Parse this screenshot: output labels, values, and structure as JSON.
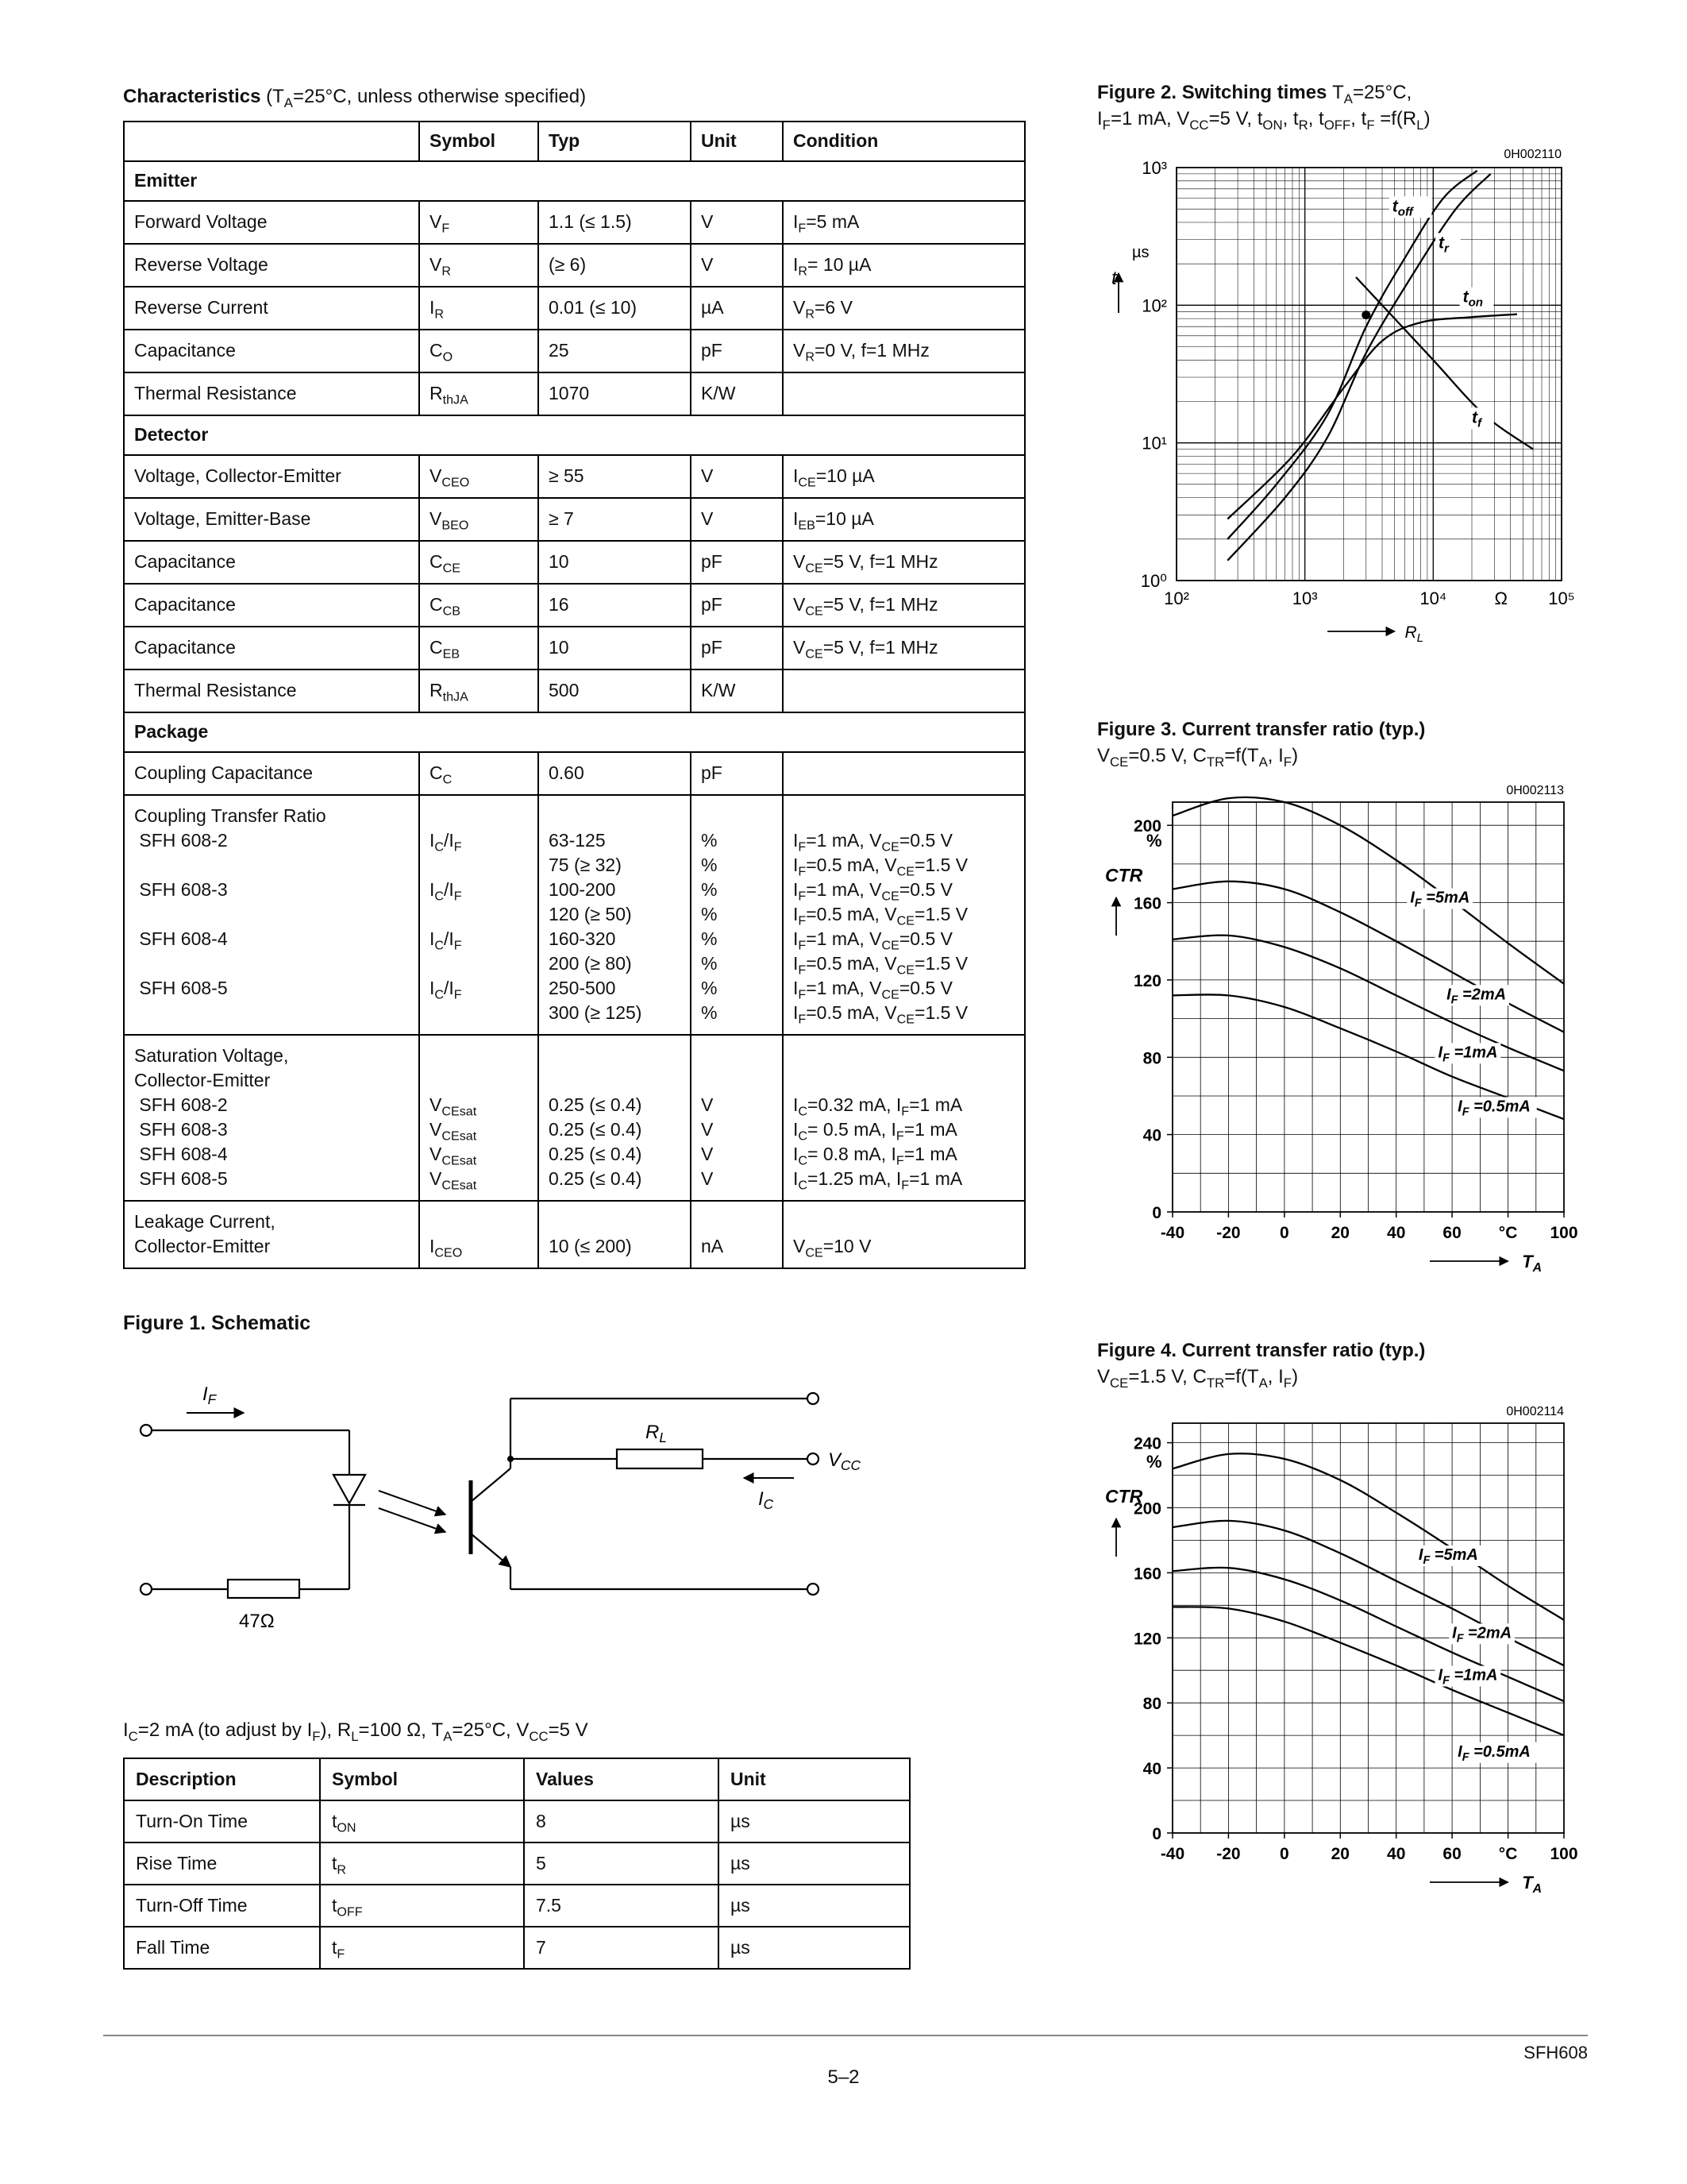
{
  "page": {
    "footer_doc": "SFH608",
    "footer_page": "5–2"
  },
  "characteristics": {
    "heading": "Characteristics",
    "heading_note": " (T~A~=25°C, unless otherwise specified)",
    "columns": [
      "",
      "Symbol",
      "Typ",
      "Unit",
      "Condition"
    ],
    "rows": [
      {
        "section": "Emitter"
      },
      {
        "desc": [
          "Forward Voltage"
        ],
        "sym": [
          "V~F~"
        ],
        "typ": [
          "1.1 (≤ 1.5)"
        ],
        "unit": [
          "V"
        ],
        "cond": [
          "I~F~=5 mA"
        ]
      },
      {
        "desc": [
          "Reverse Voltage"
        ],
        "sym": [
          "V~R~"
        ],
        "typ": [
          "(≥ 6)"
        ],
        "unit": [
          "V"
        ],
        "cond": [
          "I~R~= 10 µA"
        ]
      },
      {
        "desc": [
          "Reverse Current"
        ],
        "sym": [
          "I~R~"
        ],
        "typ": [
          "0.01 (≤ 10)"
        ],
        "unit": [
          "µA"
        ],
        "cond": [
          "V~R~=6 V"
        ]
      },
      {
        "desc": [
          "Capacitance"
        ],
        "sym": [
          "C~O~"
        ],
        "typ": [
          "25"
        ],
        "unit": [
          "pF"
        ],
        "cond": [
          "V~R~=0 V,  f=1 MHz"
        ]
      },
      {
        "desc": [
          "Thermal Resistance"
        ],
        "sym": [
          "R~thJA~"
        ],
        "typ": [
          "1070"
        ],
        "unit": [
          "K/W"
        ],
        "cond": [
          ""
        ]
      },
      {
        "section": "Detector"
      },
      {
        "desc": [
          "Voltage, Collector-Emitter"
        ],
        "sym": [
          "V~CEO~"
        ],
        "typ": [
          "≥ 55"
        ],
        "unit": [
          "V"
        ],
        "cond": [
          "I~CE~=10 µA"
        ]
      },
      {
        "desc": [
          "Voltage, Emitter-Base"
        ],
        "sym": [
          "V~BEO~"
        ],
        "typ": [
          "≥ 7"
        ],
        "unit": [
          "V"
        ],
        "cond": [
          "I~EB~=10 µA"
        ]
      },
      {
        "desc": [
          "Capacitance"
        ],
        "sym": [
          "C~CE~"
        ],
        "typ": [
          "10"
        ],
        "unit": [
          "pF"
        ],
        "cond": [
          "V~CE~=5 V, f=1 MHz"
        ]
      },
      {
        "desc": [
          "Capacitance"
        ],
        "sym": [
          "C~CB~"
        ],
        "typ": [
          "16"
        ],
        "unit": [
          "pF"
        ],
        "cond": [
          "V~CE~=5 V, f=1 MHz"
        ]
      },
      {
        "desc": [
          "Capacitance"
        ],
        "sym": [
          "C~EB~"
        ],
        "typ": [
          "10"
        ],
        "unit": [
          "pF"
        ],
        "cond": [
          "V~CE~=5 V, f=1 MHz"
        ]
      },
      {
        "desc": [
          "Thermal Resistance"
        ],
        "sym": [
          "R~thJA~"
        ],
        "typ": [
          "500"
        ],
        "unit": [
          "K/W"
        ],
        "cond": [
          ""
        ]
      },
      {
        "section": "Package"
      },
      {
        "desc": [
          "Coupling Capacitance"
        ],
        "sym": [
          "C~C~"
        ],
        "typ": [
          "0.60"
        ],
        "unit": [
          "pF"
        ],
        "cond": [
          ""
        ]
      },
      {
        "desc": [
          "Coupling Transfer Ratio",
          " SFH 608-2",
          "",
          " SFH 608-3",
          "",
          " SFH 608-4",
          "",
          " SFH 608-5",
          ""
        ],
        "sym": [
          "",
          "I~C~/I~F~",
          "",
          "I~C~/I~F~",
          "",
          "I~C~/I~F~",
          "",
          "I~C~/I~F~",
          ""
        ],
        "typ": [
          "",
          "63-125",
          "75 (≥ 32)",
          "100-200",
          "120 (≥ 50)",
          "160-320",
          "200 (≥ 80)",
          "250-500",
          "300 (≥ 125)"
        ],
        "unit": [
          "",
          "%",
          "%",
          "%",
          "%",
          "%",
          "%",
          "%",
          "%"
        ],
        "cond": [
          "",
          "I~F~=1 mA, V~CE~=0.5 V",
          "I~F~=0.5 mA, V~CE~=1.5 V",
          "I~F~=1 mA, V~CE~=0.5 V",
          "I~F~=0.5 mA, V~CE~=1.5 V",
          "I~F~=1 mA, V~CE~=0.5 V",
          "I~F~=0.5 mA, V~CE~=1.5 V",
          "I~F~=1 mA, V~CE~=0.5 V",
          "I~F~=0.5 mA, V~CE~=1.5 V"
        ]
      },
      {
        "desc": [
          "Saturation Voltage,",
          "Collector-Emitter",
          " SFH 608-2",
          " SFH 608-3",
          " SFH 608-4",
          " SFH 608-5"
        ],
        "sym": [
          "",
          "",
          "V~CEsat~",
          "V~CEsat~",
          "V~CEsat~",
          "V~CEsat~"
        ],
        "typ": [
          "",
          "",
          "0.25 (≤ 0.4)",
          "0.25 (≤ 0.4)",
          "0.25 (≤ 0.4)",
          "0.25 (≤ 0.4)"
        ],
        "unit": [
          "",
          "",
          "V",
          "V",
          "V",
          "V"
        ],
        "cond": [
          "",
          "",
          "I~C~=0.32 mA, I~F~=1 mA",
          "I~C~= 0.5 mA, I~F~=1 mA",
          "I~C~= 0.8 mA, I~F~=1 mA",
          "I~C~=1.25 mA, I~F~=1 mA"
        ]
      },
      {
        "desc": [
          "Leakage Current,",
          "Collector-Emitter"
        ],
        "sym": [
          "",
          "I~CEO~"
        ],
        "typ": [
          "",
          "10 (≤ 200)"
        ],
        "unit": [
          "",
          "nA"
        ],
        "cond": [
          "",
          "V~CE~=10 V"
        ]
      }
    ]
  },
  "figures": {
    "fig1": {
      "title": "Figure 1. Schematic"
    },
    "fig2": {
      "title_bold": "Figure 2.  Switching times ",
      "title_rest": "T~A~=25°C,",
      "subtitle": "I~F~=1 mA, V~CC~=5 V, t~ON~, t~R~, t~OFF~, t~F~ =f(R~L~)"
    },
    "fig3": {
      "title_bold": "Figure 3.  Current transfer ratio (typ.)",
      "subtitle": "V~CE~=0.5 V, C~TR~=f(T~A~, I~F~)"
    },
    "fig4": {
      "title_bold": "Figure 4.  Current transfer ratio (typ.)",
      "subtitle": "V~CE~=1.5 V, C~TR~=f(T~A~, I~F~)"
    }
  },
  "schematic": {
    "if_label": "I~F~",
    "input_resistor": "47Ω",
    "rl_label": "R~L~",
    "vcc_label": "V~CC~",
    "ic_label": "I~C~"
  },
  "switching": {
    "heading": "I~C~=2 mA (to adjust by I~F~), R~L~=100 Ω, T~A~=25°C, V~CC~=5 V",
    "columns": [
      "Description",
      "Symbol",
      "Values",
      "Unit"
    ],
    "rows": [
      {
        "desc": "Turn-On Time",
        "sym": "t~ON~",
        "val": "8",
        "unit": "µs"
      },
      {
        "desc": "Rise Time",
        "sym": "t~R~",
        "val": "5",
        "unit": "µs"
      },
      {
        "desc": "Turn-Off Time",
        "sym": "t~OFF~",
        "val": "7.5",
        "unit": "µs"
      },
      {
        "desc": "Fall Time",
        "sym": "t~F~",
        "val": "7",
        "unit": "µs"
      }
    ]
  },
  "chart_data": [
    {
      "id": "switching-times",
      "type": "line",
      "scale": "log-log",
      "title": "Switching times, TA=25°C, IF=1 mA, VCC=5 V, tON, tR, tOFF, tF=f(RL)",
      "code": "0H002110",
      "xlabel": "R~L~",
      "xunit": "Ω",
      "ylabel": "t",
      "yunit": "µs",
      "xlim": [
        100,
        100000
      ],
      "ylim": [
        1,
        1000
      ],
      "xticks": [
        "10²",
        "10³",
        "10⁴",
        "10⁵"
      ],
      "yticks": [
        "10⁰",
        "10¹",
        "10²",
        "10³"
      ],
      "grid": "log minor+major",
      "dot": [
        3000,
        85
      ],
      "series": [
        {
          "label": "t~off~",
          "x": [
            250,
            600,
            1500,
            3000,
            6000,
            12000,
            22000
          ],
          "y": [
            2,
            5,
            16,
            70,
            220,
            600,
            950
          ],
          "label_at": [
            4800,
            480
          ]
        },
        {
          "label": "t~r~",
          "x": [
            250,
            700,
            1500,
            3000,
            7000,
            15000,
            28000
          ],
          "y": [
            1.4,
            4,
            11,
            45,
            170,
            500,
            900
          ],
          "label_at": [
            11000,
            260
          ]
        },
        {
          "label": "t~on~",
          "x": [
            250,
            800,
            2000,
            4000,
            8000,
            20000,
            45000
          ],
          "y": [
            2.8,
            8,
            25,
            55,
            75,
            82,
            86
          ],
          "label_at": [
            17000,
            105
          ]
        },
        {
          "label": "t~f~",
          "x": [
            2500,
            5000,
            10000,
            25000,
            60000
          ],
          "y": [
            160,
            80,
            40,
            16,
            9
          ],
          "label_at": [
            20000,
            14
          ]
        }
      ]
    },
    {
      "id": "ctr-low",
      "type": "line",
      "scale": "linear",
      "title": "Current transfer ratio (typ.), VCE=0.5 V, CTR=f(TA, IF)",
      "code": "0H002113",
      "xlabel": "T~A~",
      "xunit": "°C",
      "ylabel": "CTR",
      "yunit": "%",
      "xlim": [
        -40,
        100
      ],
      "ylim": [
        0,
        212
      ],
      "grid_step_x": 10,
      "grid_step_y": 20,
      "xtick_vals": [
        -40,
        -20,
        0,
        20,
        40,
        60,
        80,
        100
      ],
      "xticks": [
        "-40",
        "-20",
        "0",
        "20",
        "40",
        "60",
        "°C",
        "100"
      ],
      "ytick_vals": [
        0,
        40,
        80,
        120,
        160,
        200
      ],
      "x": [
        -40,
        -20,
        0,
        20,
        40,
        60,
        80,
        100
      ],
      "series": [
        {
          "label": "I~F~ =5mA",
          "values": [
            205,
            214,
            212,
            200,
            182,
            161,
            139,
            118
          ],
          "label_at": [
            45,
            160
          ]
        },
        {
          "label": "I~F~ =2mA",
          "values": [
            167,
            171,
            167,
            155,
            140,
            124,
            108,
            93
          ],
          "label_at": [
            58,
            110
          ]
        },
        {
          "label": "I~F~ =1mA",
          "values": [
            141,
            143,
            137,
            126,
            112,
            98,
            85,
            73
          ],
          "label_at": [
            55,
            80
          ]
        },
        {
          "label": "I~F~ =0.5mA",
          "values": [
            112,
            112,
            106,
            95,
            83,
            70,
            59,
            48
          ],
          "label_at": [
            62,
            52
          ]
        }
      ]
    },
    {
      "id": "ctr-high",
      "type": "line",
      "scale": "linear",
      "title": "Current transfer ratio (typ.), VCE=1.5 V, CTR=f(TA, IF)",
      "code": "0H002114",
      "xlabel": "T~A~",
      "xunit": "°C",
      "ylabel": "CTR",
      "yunit": "%",
      "xlim": [
        -40,
        100
      ],
      "ylim": [
        0,
        252
      ],
      "grid_step_x": 10,
      "grid_step_y": 20,
      "xtick_vals": [
        -40,
        -20,
        0,
        20,
        40,
        60,
        80,
        100
      ],
      "xticks": [
        "-40",
        "-20",
        "0",
        "20",
        "40",
        "60",
        "°C",
        "100"
      ],
      "ytick_vals": [
        0,
        40,
        80,
        120,
        160,
        200,
        240
      ],
      "x": [
        -40,
        -20,
        0,
        20,
        40,
        60,
        80,
        100
      ],
      "series": [
        {
          "label": "I~F~ =5mA",
          "values": [
            224,
            233,
            230,
            217,
            197,
            175,
            152,
            131
          ],
          "label_at": [
            48,
            168
          ]
        },
        {
          "label": "I~F~ =2mA",
          "values": [
            188,
            192,
            186,
            172,
            155,
            138,
            120,
            103
          ],
          "label_at": [
            60,
            120
          ]
        },
        {
          "label": "I~F~ =1mA",
          "values": [
            161,
            163,
            156,
            143,
            127,
            111,
            96,
            81
          ],
          "label_at": [
            55,
            94
          ]
        },
        {
          "label": "I~F~ =0.5mA",
          "values": [
            139,
            138,
            130,
            117,
            103,
            88,
            74,
            60
          ],
          "label_at": [
            62,
            47
          ]
        }
      ]
    }
  ]
}
